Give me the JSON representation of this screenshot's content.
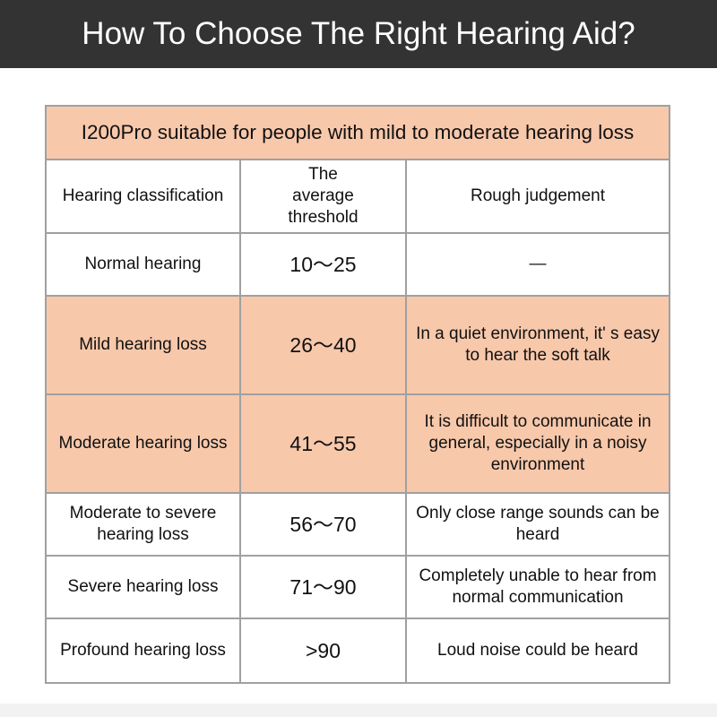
{
  "header": {
    "title": "How To Choose The Right Hearing Aid?"
  },
  "colors": {
    "header_bg": "#333333",
    "highlight": "#f8c8ab",
    "border": "#a0a0a0"
  },
  "table": {
    "title": "I200Pro suitable for people with mild to moderate hearing loss",
    "columns": [
      "Hearing classification",
      "The average threshold",
      "Rough judgement"
    ],
    "rows": [
      {
        "classification": "Normal hearing",
        "threshold": "10～25",
        "judgement": "—",
        "highlight": false
      },
      {
        "classification": "Mild hearing loss",
        "threshold": "26～40",
        "judgement": "In a quiet environment, it' s easy to hear the soft talk",
        "highlight": true
      },
      {
        "classification": "Moderate hearing loss",
        "threshold": "41～55",
        "judgement": "It is difficult to communicate in general, especially in a noisy environment",
        "highlight": true
      },
      {
        "classification": "Moderate to severe hearing loss",
        "threshold": "56～70",
        "judgement": "Only close range sounds can be heard",
        "highlight": false
      },
      {
        "classification": "Severe hearing loss",
        "threshold": "71～90",
        "judgement": "Completely unable to hear from normal communication",
        "highlight": false
      },
      {
        "classification": "Profound hearing loss",
        "threshold": ">90",
        "judgement": "Loud noise could be heard",
        "highlight": false
      }
    ]
  }
}
